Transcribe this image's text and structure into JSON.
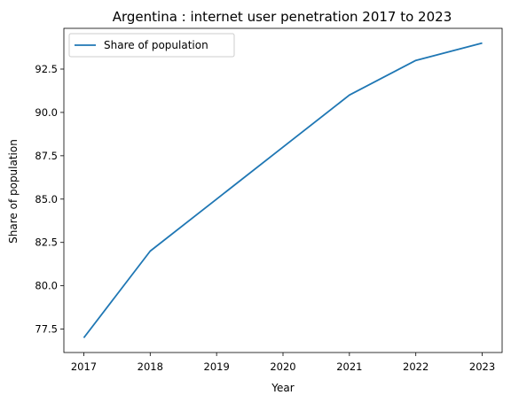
{
  "chart_data": {
    "type": "line",
    "title": "Argentina : internet user penetration 2017 to 2023",
    "xlabel": "Year",
    "ylabel": "Share of population",
    "x": [
      2017,
      2018,
      2019,
      2020,
      2021,
      2022,
      2023
    ],
    "series": [
      {
        "name": "Share of population",
        "values": [
          77,
          82,
          85,
          88,
          91,
          93,
          94
        ],
        "color": "#1f77b4"
      }
    ],
    "xlim": [
      2016.7,
      2023.3
    ],
    "ylim": [
      76.15,
      94.85
    ],
    "xticks": [
      "2017",
      "2018",
      "2019",
      "2020",
      "2021",
      "2022",
      "2023"
    ],
    "yticks": [
      "77.5",
      "80.0",
      "82.5",
      "85.0",
      "87.5",
      "90.0",
      "92.5"
    ],
    "legend": "top-left",
    "grid": false
  }
}
